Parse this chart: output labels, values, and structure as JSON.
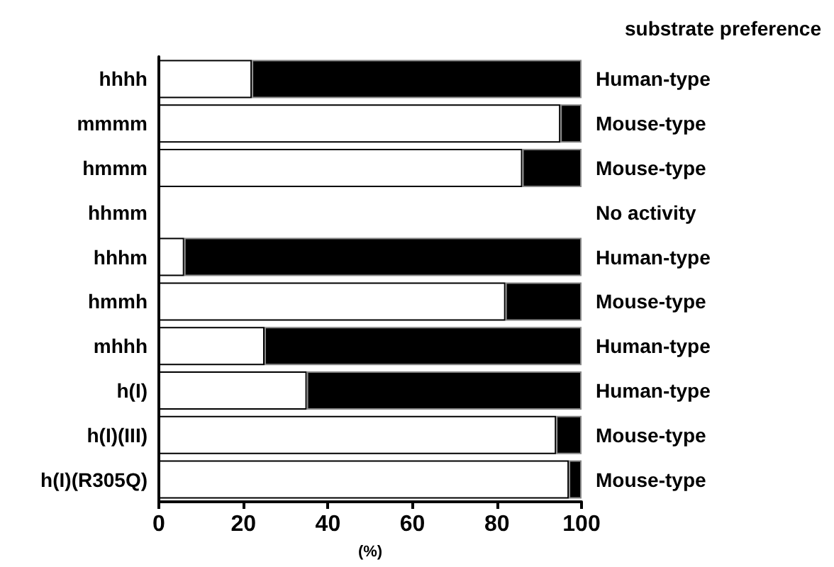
{
  "chart_data": {
    "type": "bar",
    "orientation": "horizontal",
    "stacked": true,
    "xlabel": "(%)",
    "categories": [
      "hhhh",
      "mmmm",
      "hmmm",
      "hhmm",
      "hhhm",
      "hmmh",
      "mhhh",
      "h(I)",
      "h(I)(III)",
      "h(I)(R305Q)"
    ],
    "series": [
      {
        "color": "#ffffff",
        "values": [
          22,
          95,
          86,
          null,
          6,
          82,
          25,
          35,
          94,
          97
        ]
      },
      {
        "color": "#000000",
        "values": [
          78,
          5,
          14,
          null,
          94,
          18,
          75,
          65,
          6,
          3
        ]
      }
    ],
    "xlim": [
      0,
      100
    ],
    "xticks": [
      0,
      20,
      40,
      60,
      80,
      100
    ],
    "grid": false,
    "annotations": [
      "substrate preference",
      "Human-type",
      "Mouse-type",
      "Mouse-type",
      "No activity",
      "Human-type",
      "Mouse-type",
      "Human-type",
      "Human-type",
      "Mouse-type",
      "Mouse-type"
    ]
  }
}
